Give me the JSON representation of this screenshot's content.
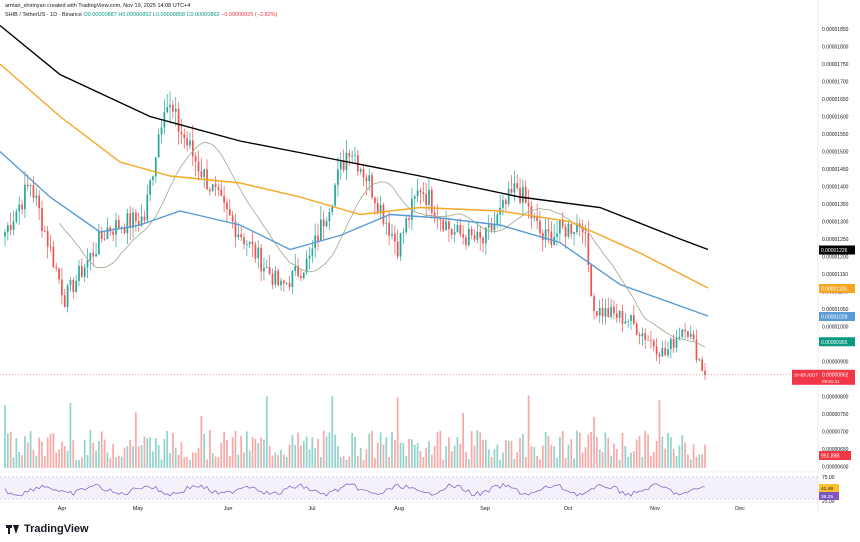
{
  "header": {
    "author_line": "arman_shirinyan created with TradingView.com, Nov 19, 2025 14:08 UTC+4",
    "symbol": "SHIB / TetherUS · 1D · Binance",
    "ohlc_o": "O0.00000887",
    "ohlc_h": "H0.00000892",
    "ohlc_l": "L0.00000858",
    "ohlc_c": "C0.00000862",
    "change": "−0.00000025 (−2.82%)"
  },
  "footer": {
    "logo_text": "TradingView"
  },
  "colors": {
    "up": "#26a69a",
    "down": "#ef5350",
    "ma200": "#000000",
    "ma100": "#f5a623",
    "ma50": "#5b9bd5",
    "ma20": "#9aa88a",
    "rsi": "#7e57c2",
    "price_label": "#f23645",
    "ma20_label": "#089981"
  },
  "chart_data": {
    "type": "candlestick",
    "title": "SHIB / TetherUS · 1D · Binance",
    "x_tick_labels": [
      "Apr",
      "May",
      "Jun",
      "Jul",
      "Aug",
      "Sep",
      "Oct",
      "Nov",
      "Dec"
    ],
    "y_tick_labels": [
      "0.00001850",
      "0.00001800",
      "0.00001750",
      "0.00001700",
      "0.00001650",
      "0.00001600",
      "0.00001550",
      "0.00001500",
      "0.00001450",
      "0.00001400",
      "0.00001350",
      "0.00001300",
      "0.00001250",
      "0.00001200",
      "0.00001150",
      "0.00001100",
      "0.00001050",
      "0.00001000",
      "0.00000950",
      "0.00000900",
      "0.00000850",
      "0.00000800",
      "0.00000750",
      "0.00000700",
      "0.00000650",
      "0.00000600"
    ],
    "ylim": [
      5.9e-06,
      1.87e-05
    ],
    "anchor_points": [
      {
        "date": "Mar 17",
        "close": 1.27e-05
      },
      {
        "date": "Mar 26",
        "close": 1.41e-05
      },
      {
        "date": "Apr 7",
        "close": 1.08e-05
      },
      {
        "date": "Apr 22",
        "close": 1.28e-05
      },
      {
        "date": "May 5",
        "close": 1.31e-05
      },
      {
        "date": "May 12",
        "close": 1.65e-05
      },
      {
        "date": "May 22",
        "close": 1.49e-05
      },
      {
        "date": "Jun 2",
        "close": 1.33e-05
      },
      {
        "date": "Jun 22",
        "close": 1.11e-05
      },
      {
        "date": "Jul 2",
        "close": 1.19e-05
      },
      {
        "date": "Jul 16",
        "close": 1.52e-05
      },
      {
        "date": "Jul 22",
        "close": 1.43e-05
      },
      {
        "date": "Aug 2",
        "close": 1.23e-05
      },
      {
        "date": "Aug 10",
        "close": 1.4e-05
      },
      {
        "date": "Aug 21",
        "close": 1.27e-05
      },
      {
        "date": "Sep 1",
        "close": 1.24e-05
      },
      {
        "date": "Sep 13",
        "close": 1.4e-05
      },
      {
        "date": "Sep 22",
        "close": 1.25e-05
      },
      {
        "date": "Oct 6",
        "close": 1.3e-05
      },
      {
        "date": "Oct 10",
        "close": 1.05e-05
      },
      {
        "date": "Oct 22",
        "close": 1.02e-05
      },
      {
        "date": "Nov 4",
        "close": 9.2e-06
      },
      {
        "date": "Nov 11",
        "close": 1.01e-05
      },
      {
        "date": "Nov 18",
        "close": 8.62e-06
      }
    ],
    "moving_averages": [
      {
        "label": "0.00001226",
        "color": "#000000",
        "points": [
          [
            0,
            1.86e-05
          ],
          [
            60,
            1.72e-05
          ],
          [
            150,
            1.6e-05
          ],
          [
            240,
            1.53e-05
          ],
          [
            330,
            1.48e-05
          ],
          [
            420,
            1.43e-05
          ],
          [
            520,
            1.37e-05
          ],
          [
            600,
            1.34e-05
          ],
          [
            680,
            1.25e-05
          ],
          [
            708,
            1.22e-05
          ]
        ]
      },
      {
        "label": "0.00001106",
        "color": "#f5a623",
        "points": [
          [
            0,
            1.75e-05
          ],
          [
            60,
            1.6e-05
          ],
          [
            120,
            1.47e-05
          ],
          [
            170,
            1.43e-05
          ],
          [
            240,
            1.41e-05
          ],
          [
            300,
            1.37e-05
          ],
          [
            360,
            1.32e-05
          ],
          [
            420,
            1.34e-05
          ],
          [
            500,
            1.33e-05
          ],
          [
            570,
            1.3e-05
          ],
          [
            640,
            1.21e-05
          ],
          [
            708,
            1.11e-05
          ]
        ]
      },
      {
        "label": "0.00001028",
        "color": "#5b9bd5",
        "points": [
          [
            0,
            1.5e-05
          ],
          [
            50,
            1.37e-05
          ],
          [
            100,
            1.27e-05
          ],
          [
            140,
            1.29e-05
          ],
          [
            180,
            1.33e-05
          ],
          [
            240,
            1.29e-05
          ],
          [
            290,
            1.22e-05
          ],
          [
            340,
            1.26e-05
          ],
          [
            390,
            1.32e-05
          ],
          [
            440,
            1.31e-05
          ],
          [
            500,
            1.29e-05
          ],
          [
            560,
            1.24e-05
          ],
          [
            620,
            1.12e-05
          ],
          [
            708,
            1.03e-05
          ]
        ]
      }
    ],
    "volume_pane": {
      "ylim": [
        0,
        1
      ]
    },
    "rsi_pane": {
      "tick_labels": [
        "75.00",
        "25.00"
      ],
      "values": [
        "41.48",
        "36.25"
      ]
    },
    "current_price_label": "0.00000862",
    "current_price_sub": "09:51:41",
    "ticker_label": "SHIBUSDT",
    "ma20_value_label": "0.00000955",
    "volume_label": "951.89B"
  }
}
